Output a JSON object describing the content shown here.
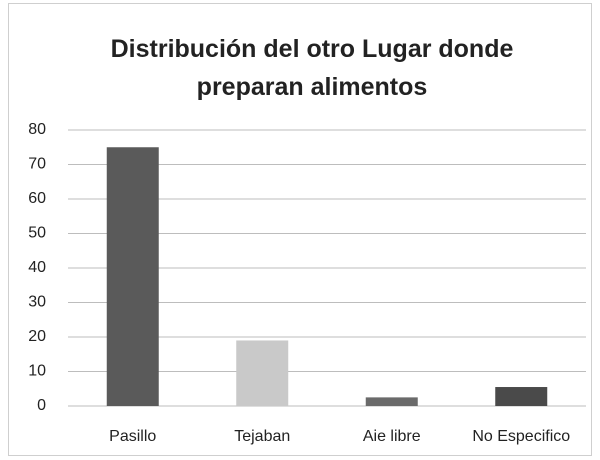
{
  "chart_data": {
    "type": "bar",
    "title": "Distribución del otro Lugar donde preparan alimentos",
    "categories": [
      "Pasillo",
      "Tejaban",
      "Aie libre",
      "No Especifico"
    ],
    "values": [
      75,
      19,
      2.5,
      5.5
    ],
    "colors": [
      "#5a5a5a",
      "#c9c9c9",
      "#6a6a6a",
      "#4a4a4a"
    ],
    "ylim": [
      0,
      80
    ],
    "yticks": [
      0,
      10,
      20,
      30,
      40,
      50,
      60,
      70,
      80
    ],
    "grid": true
  }
}
